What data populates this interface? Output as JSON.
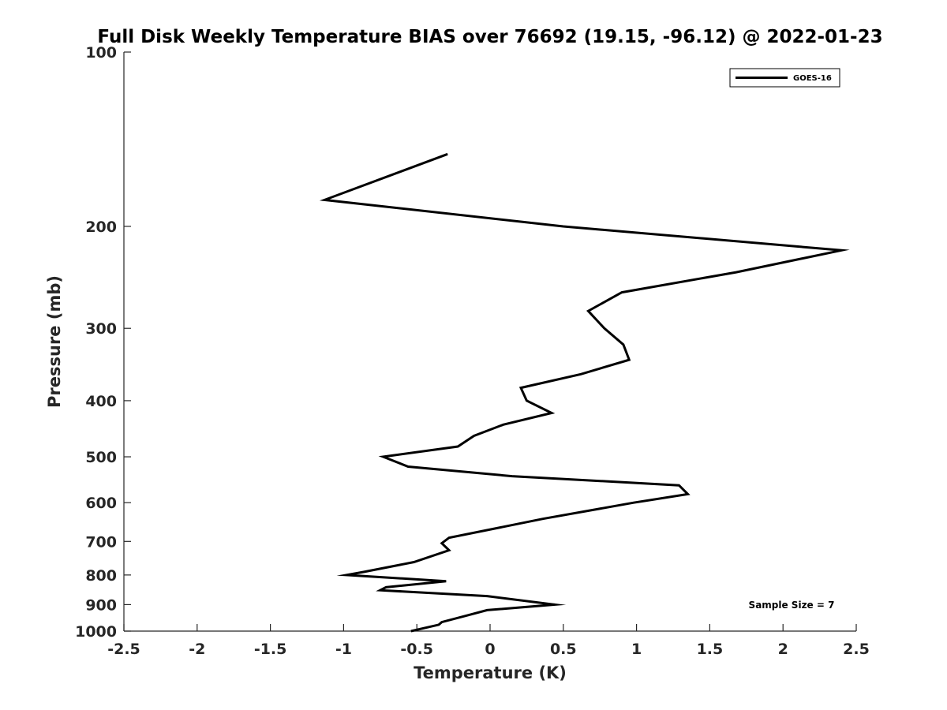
{
  "chart_data": {
    "type": "line",
    "title": "Full Disk Weekly Temperature BIAS over 76692 (19.15, -96.12) @ 2022-01-23",
    "xlabel": "Temperature (K)",
    "ylabel": "Pressure (mb)",
    "xlim": [
      -2.5,
      2.5
    ],
    "ylim": [
      100,
      1000
    ],
    "y_scale": "log",
    "y_reversed": true,
    "x_ticks": [
      "-2.5",
      "-2",
      "-1.5",
      "-1",
      "-0.5",
      "0",
      "0.5",
      "1",
      "1.5",
      "2",
      "2.5"
    ],
    "y_ticks": [
      "100",
      "200",
      "300",
      "400",
      "500",
      "600",
      "700",
      "800",
      "900",
      "1000"
    ],
    "grid": false,
    "legend_position": "top-right",
    "series": [
      {
        "name": "GOES-16",
        "color": "#000000",
        "points": [
          {
            "t": -0.29,
            "p": 150
          },
          {
            "t": -1.13,
            "p": 180
          },
          {
            "t": 0.5,
            "p": 200
          },
          {
            "t": 2.4,
            "p": 220
          },
          {
            "t": 1.68,
            "p": 240
          },
          {
            "t": 0.9,
            "p": 260
          },
          {
            "t": 0.67,
            "p": 280
          },
          {
            "t": 0.78,
            "p": 300
          },
          {
            "t": 0.91,
            "p": 320
          },
          {
            "t": 0.95,
            "p": 340
          },
          {
            "t": 0.62,
            "p": 360
          },
          {
            "t": 0.21,
            "p": 380
          },
          {
            "t": 0.25,
            "p": 400
          },
          {
            "t": 0.42,
            "p": 420
          },
          {
            "t": 0.09,
            "p": 440
          },
          {
            "t": -0.11,
            "p": 460
          },
          {
            "t": -0.22,
            "p": 480
          },
          {
            "t": -0.73,
            "p": 500
          },
          {
            "t": -0.56,
            "p": 520
          },
          {
            "t": 0.15,
            "p": 540
          },
          {
            "t": 1.29,
            "p": 560
          },
          {
            "t": 1.35,
            "p": 580
          },
          {
            "t": 0.98,
            "p": 600
          },
          {
            "t": 0.36,
            "p": 640
          },
          {
            "t": -0.28,
            "p": 690
          },
          {
            "t": -0.33,
            "p": 705
          },
          {
            "t": -0.28,
            "p": 725
          },
          {
            "t": -0.52,
            "p": 760
          },
          {
            "t": -0.86,
            "p": 790
          },
          {
            "t": -0.98,
            "p": 800
          },
          {
            "t": -0.3,
            "p": 820
          },
          {
            "t": -0.71,
            "p": 840
          },
          {
            "t": -0.75,
            "p": 850
          },
          {
            "t": -0.02,
            "p": 870
          },
          {
            "t": 0.44,
            "p": 900
          },
          {
            "t": -0.02,
            "p": 920
          },
          {
            "t": -0.16,
            "p": 940
          },
          {
            "t": -0.33,
            "p": 965
          },
          {
            "t": -0.35,
            "p": 975
          },
          {
            "t": -0.54,
            "p": 1000
          }
        ]
      }
    ],
    "annotations": [
      {
        "text": "Sample Size = 7",
        "position": "bottom-right"
      }
    ]
  }
}
